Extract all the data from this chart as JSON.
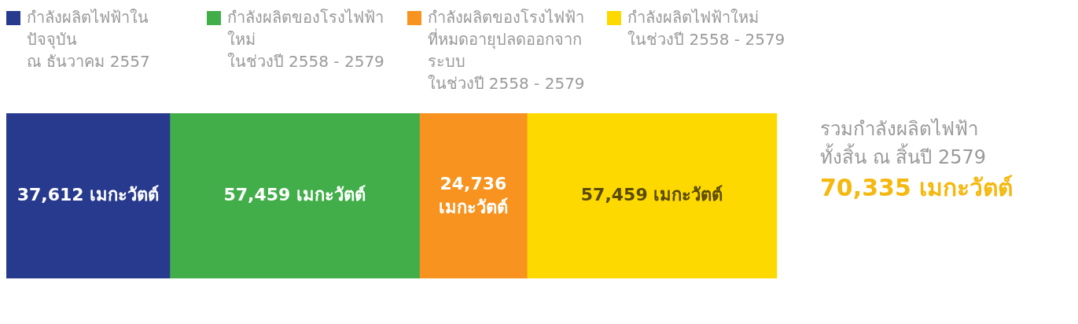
{
  "chart_data": {
    "type": "bar",
    "orientation": "horizontal",
    "stacked": true,
    "categories": [
      null
    ],
    "tick_labels": false,
    "legend": "top",
    "series": [
      {
        "name": "กำลังผลิตไฟฟ้าในปัจจุบัน\nณ ธันวาคม 2557",
        "color": "#283a8e",
        "values": [
          37612
        ],
        "value_labels": [
          "37,612 เมกะวัตต์"
        ]
      },
      {
        "name": "กำลังผลิตของโรงไฟฟ้าใหม่\nในช่วงปี 2558 - 2579",
        "color": "#41ae4a",
        "values": [
          57459
        ],
        "value_labels": [
          "57,459 เมกะวัตต์"
        ]
      },
      {
        "name": "กำลังผลิตของโรงไฟฟ้า\nที่หมดอายุปลดออกจากระบบ\nในช่วงปี 2558 - 2579",
        "color": "#f7931e",
        "values": [
          24736
        ],
        "value_labels": [
          "24,736 เมกะวัตต์"
        ]
      },
      {
        "name": "กำลังผลิตไฟฟ้าใหม่\nในช่วงปี 2558 - 2579",
        "color": "#fdd900",
        "values": [
          57459
        ],
        "value_labels": [
          "57,459 เมกะวัตต์"
        ]
      }
    ],
    "annotations": [
      "รวมกำลังผลิตไฟฟ้า",
      "ทั้งสิ้น ณ สิ้นปี 2579",
      "70,335 เมกะวัตต์"
    ]
  }
}
